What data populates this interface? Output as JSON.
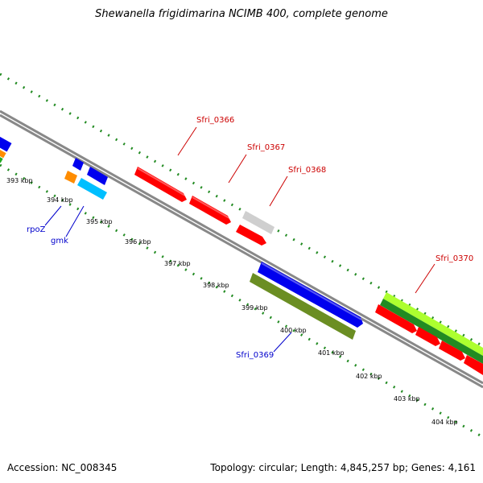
{
  "title": "Shewanella frigidimarina NCIMB 400, complete genome",
  "footer": {
    "accession": "Accession: NC_008345",
    "summary": "Topology: circular; Length: 4,845,257 bp; Genes: 4,161"
  },
  "colors": {
    "red": "#ff0000",
    "blue": "#0000ee",
    "gray": "#c8c8c8",
    "olive": "#6b8e23",
    "light_green": "#adff2f",
    "dark_green": "#228b22",
    "orange": "#ff8c00",
    "cyan": "#00bfff",
    "tick_green": "#228b22",
    "label_red": "#cc0000",
    "label_blue": "#0000cc"
  },
  "kbp_labels": [
    "393 kbp",
    "394 kbp",
    "395 kbp",
    "396 kbp",
    "397 kbp",
    "398 kbp",
    "399 kbp",
    "400 kbp",
    "401 kbp",
    "402 kbp",
    "403 kbp",
    "404 kbp"
  ],
  "genes": [
    {
      "name": "Sfri_0366",
      "color": "red"
    },
    {
      "name": "Sfri_0367",
      "color": "red"
    },
    {
      "name": "Sfri_0368",
      "color": "red"
    },
    {
      "name": "Sfri_0370",
      "color": "red"
    },
    {
      "name": "rpoZ",
      "color": "blue"
    },
    {
      "name": "gmk",
      "color": "blue"
    },
    {
      "name": "Sfri_0369",
      "color": "blue"
    }
  ]
}
